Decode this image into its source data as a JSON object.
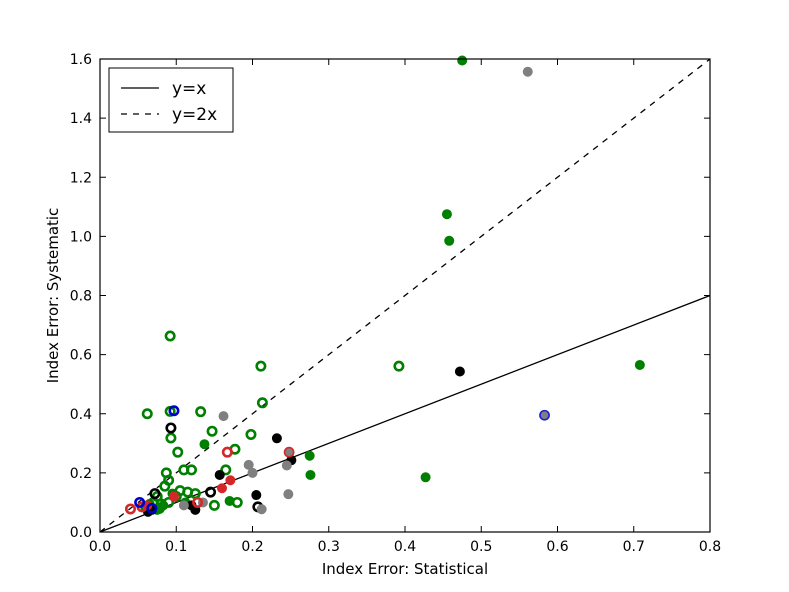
{
  "chart_data": {
    "type": "scatter",
    "title": "",
    "xlabel": "Index Error: Statistical",
    "ylabel": "Index Error: Systematic",
    "xlim": [
      0.0,
      0.8
    ],
    "ylim": [
      0.0,
      1.6
    ],
    "xticks": [
      0.0,
      0.1,
      0.2,
      0.3,
      0.4,
      0.5,
      0.6,
      0.7,
      0.8
    ],
    "yticks": [
      0.0,
      0.2,
      0.4,
      0.6,
      0.8,
      1.0,
      1.2,
      1.4,
      1.6
    ],
    "xtick_labels": [
      "0.0",
      "0.1",
      "0.2",
      "0.3",
      "0.4",
      "0.5",
      "0.6",
      "0.7",
      "0.8"
    ],
    "ytick_labels": [
      "0.0",
      "0.2",
      "0.4",
      "0.6",
      "0.8",
      "1.0",
      "1.2",
      "1.4",
      "1.6"
    ],
    "grid": false,
    "legend_position": "top-left",
    "lines": [
      {
        "name": "y=x",
        "slope": 1,
        "style": "solid",
        "color": "#000000"
      },
      {
        "name": "y=2x",
        "slope": 2,
        "style": "dashed",
        "color": "#000000"
      }
    ],
    "series": [
      {
        "name": "green-filled",
        "marker": "filled",
        "color": "#008000",
        "edge": "#008000",
        "points": [
          [
            0.475,
            1.595
          ],
          [
            0.455,
            1.075
          ],
          [
            0.458,
            0.985
          ],
          [
            0.708,
            0.565
          ],
          [
            0.275,
            0.258
          ],
          [
            0.276,
            0.193
          ],
          [
            0.427,
            0.185
          ],
          [
            0.137,
            0.297
          ],
          [
            0.17,
            0.105
          ],
          [
            0.095,
            0.13
          ],
          [
            0.083,
            0.09
          ],
          [
            0.065,
            0.095
          ],
          [
            0.075,
            0.075
          ],
          [
            0.112,
            0.1
          ]
        ]
      },
      {
        "name": "green-open",
        "marker": "open",
        "color": "#008000",
        "edge": "#008000",
        "points": [
          [
            0.092,
            0.663
          ],
          [
            0.211,
            0.561
          ],
          [
            0.392,
            0.561
          ],
          [
            0.213,
            0.437
          ],
          [
            0.062,
            0.4
          ],
          [
            0.092,
            0.408
          ],
          [
            0.132,
            0.407
          ],
          [
            0.147,
            0.341
          ],
          [
            0.093,
            0.318
          ],
          [
            0.198,
            0.33
          ],
          [
            0.177,
            0.28
          ],
          [
            0.102,
            0.27
          ],
          [
            0.087,
            0.2
          ],
          [
            0.11,
            0.21
          ],
          [
            0.12,
            0.21
          ],
          [
            0.165,
            0.21
          ],
          [
            0.09,
            0.175
          ],
          [
            0.085,
            0.155
          ],
          [
            0.075,
            0.12
          ],
          [
            0.105,
            0.14
          ],
          [
            0.115,
            0.135
          ],
          [
            0.125,
            0.13
          ],
          [
            0.1,
            0.12
          ],
          [
            0.07,
            0.1
          ],
          [
            0.08,
            0.095
          ],
          [
            0.09,
            0.1
          ],
          [
            0.15,
            0.09
          ],
          [
            0.18,
            0.1
          ],
          [
            0.06,
            0.085
          ],
          [
            0.078,
            0.08
          ]
        ]
      },
      {
        "name": "black-filled",
        "marker": "filled",
        "color": "#000000",
        "edge": "#000000",
        "points": [
          [
            0.472,
            0.543
          ],
          [
            0.232,
            0.317
          ],
          [
            0.251,
            0.243
          ],
          [
            0.157,
            0.193
          ],
          [
            0.205,
            0.125
          ],
          [
            0.12,
            0.09
          ],
          [
            0.125,
            0.075
          ],
          [
            0.068,
            0.075
          ],
          [
            0.063,
            0.068
          ]
        ]
      },
      {
        "name": "black-open",
        "marker": "open",
        "color": "#000000",
        "edge": "#000000",
        "points": [
          [
            0.093,
            0.352
          ],
          [
            0.145,
            0.135
          ],
          [
            0.072,
            0.13
          ],
          [
            0.207,
            0.085
          ]
        ]
      },
      {
        "name": "gray-filled",
        "marker": "filled",
        "color": "#808080",
        "edge": "#808080",
        "points": [
          [
            0.561,
            1.557
          ],
          [
            0.162,
            0.392
          ],
          [
            0.195,
            0.227
          ],
          [
            0.245,
            0.225
          ],
          [
            0.2,
            0.2
          ],
          [
            0.247,
            0.128
          ],
          [
            0.212,
            0.077
          ],
          [
            0.11,
            0.09
          ],
          [
            0.135,
            0.1
          ]
        ]
      },
      {
        "name": "red-filled",
        "marker": "filled",
        "color": "#d62728",
        "edge": "#d62728",
        "points": [
          [
            0.171,
            0.175
          ],
          [
            0.16,
            0.148
          ],
          [
            0.097,
            0.12
          ],
          [
            0.062,
            0.09
          ]
        ]
      },
      {
        "name": "red-edged-gray",
        "marker": "filled",
        "color": "#808080",
        "edge": "#d62728",
        "points": [
          [
            0.248,
            0.27
          ]
        ]
      },
      {
        "name": "red-open",
        "marker": "open",
        "color": "#d62728",
        "edge": "#d62728",
        "points": [
          [
            0.167,
            0.27
          ],
          [
            0.04,
            0.078
          ],
          [
            0.055,
            0.085
          ],
          [
            0.128,
            0.1
          ]
        ]
      },
      {
        "name": "blue-open",
        "marker": "open",
        "color": "#0000cc",
        "edge": "#0000cc",
        "points": [
          [
            0.097,
            0.41
          ],
          [
            0.052,
            0.1
          ],
          [
            0.068,
            0.08
          ]
        ]
      },
      {
        "name": "blue-edged-gray",
        "marker": "filled",
        "color": "#808080",
        "edge": "#1f1fcc",
        "points": [
          [
            0.583,
            0.395
          ]
        ]
      }
    ]
  }
}
